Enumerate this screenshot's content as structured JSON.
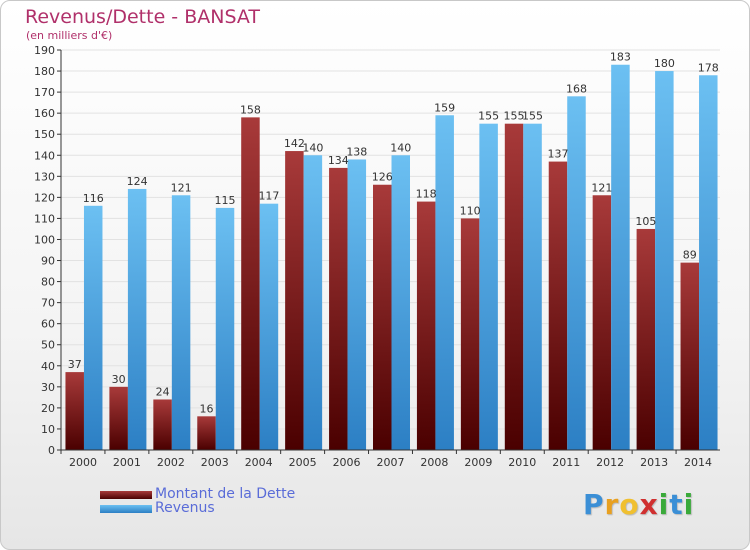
{
  "header": {
    "title": "Revenus/Dette - BANSAT",
    "subtitle": "(en milliers d'€)"
  },
  "legend": {
    "debt_label": "Montant de la Dette",
    "revenue_label": "Revenus"
  },
  "logo": {
    "text": "Proxiti",
    "letters": [
      "P",
      "r",
      "o",
      "x",
      "i",
      "t",
      "i"
    ]
  },
  "colors": {
    "title": "#b0306a",
    "legend_text": "#5a6cd8",
    "debt_top": "#a83a3a",
    "debt_bottom": "#4a0000",
    "revenue_top": "#6cc0f2",
    "revenue_bottom": "#2c7fc4",
    "grid": "#e2e2e2",
    "axis": "#333333"
  },
  "chart_data": {
    "type": "bar",
    "title": "Revenus/Dette - BANSAT",
    "ylabel": "(en milliers d'€)",
    "xlabel": "",
    "ylim": [
      0,
      190
    ],
    "ytick_step": 10,
    "grid": true,
    "legend_position": "bottom-left",
    "categories": [
      "2000",
      "2001",
      "2002",
      "2003",
      "2004",
      "2005",
      "2006",
      "2007",
      "2008",
      "2009",
      "2010",
      "2011",
      "2012",
      "2013",
      "2014"
    ],
    "series": [
      {
        "name": "Montant de la Dette",
        "values": [
          37,
          30,
          24,
          16,
          158,
          142,
          134,
          126,
          118,
          110,
          155,
          137,
          121,
          105,
          89
        ]
      },
      {
        "name": "Revenus",
        "values": [
          116,
          124,
          121,
          115,
          117,
          140,
          138,
          140,
          159,
          155,
          155,
          168,
          183,
          180,
          178
        ]
      }
    ]
  }
}
